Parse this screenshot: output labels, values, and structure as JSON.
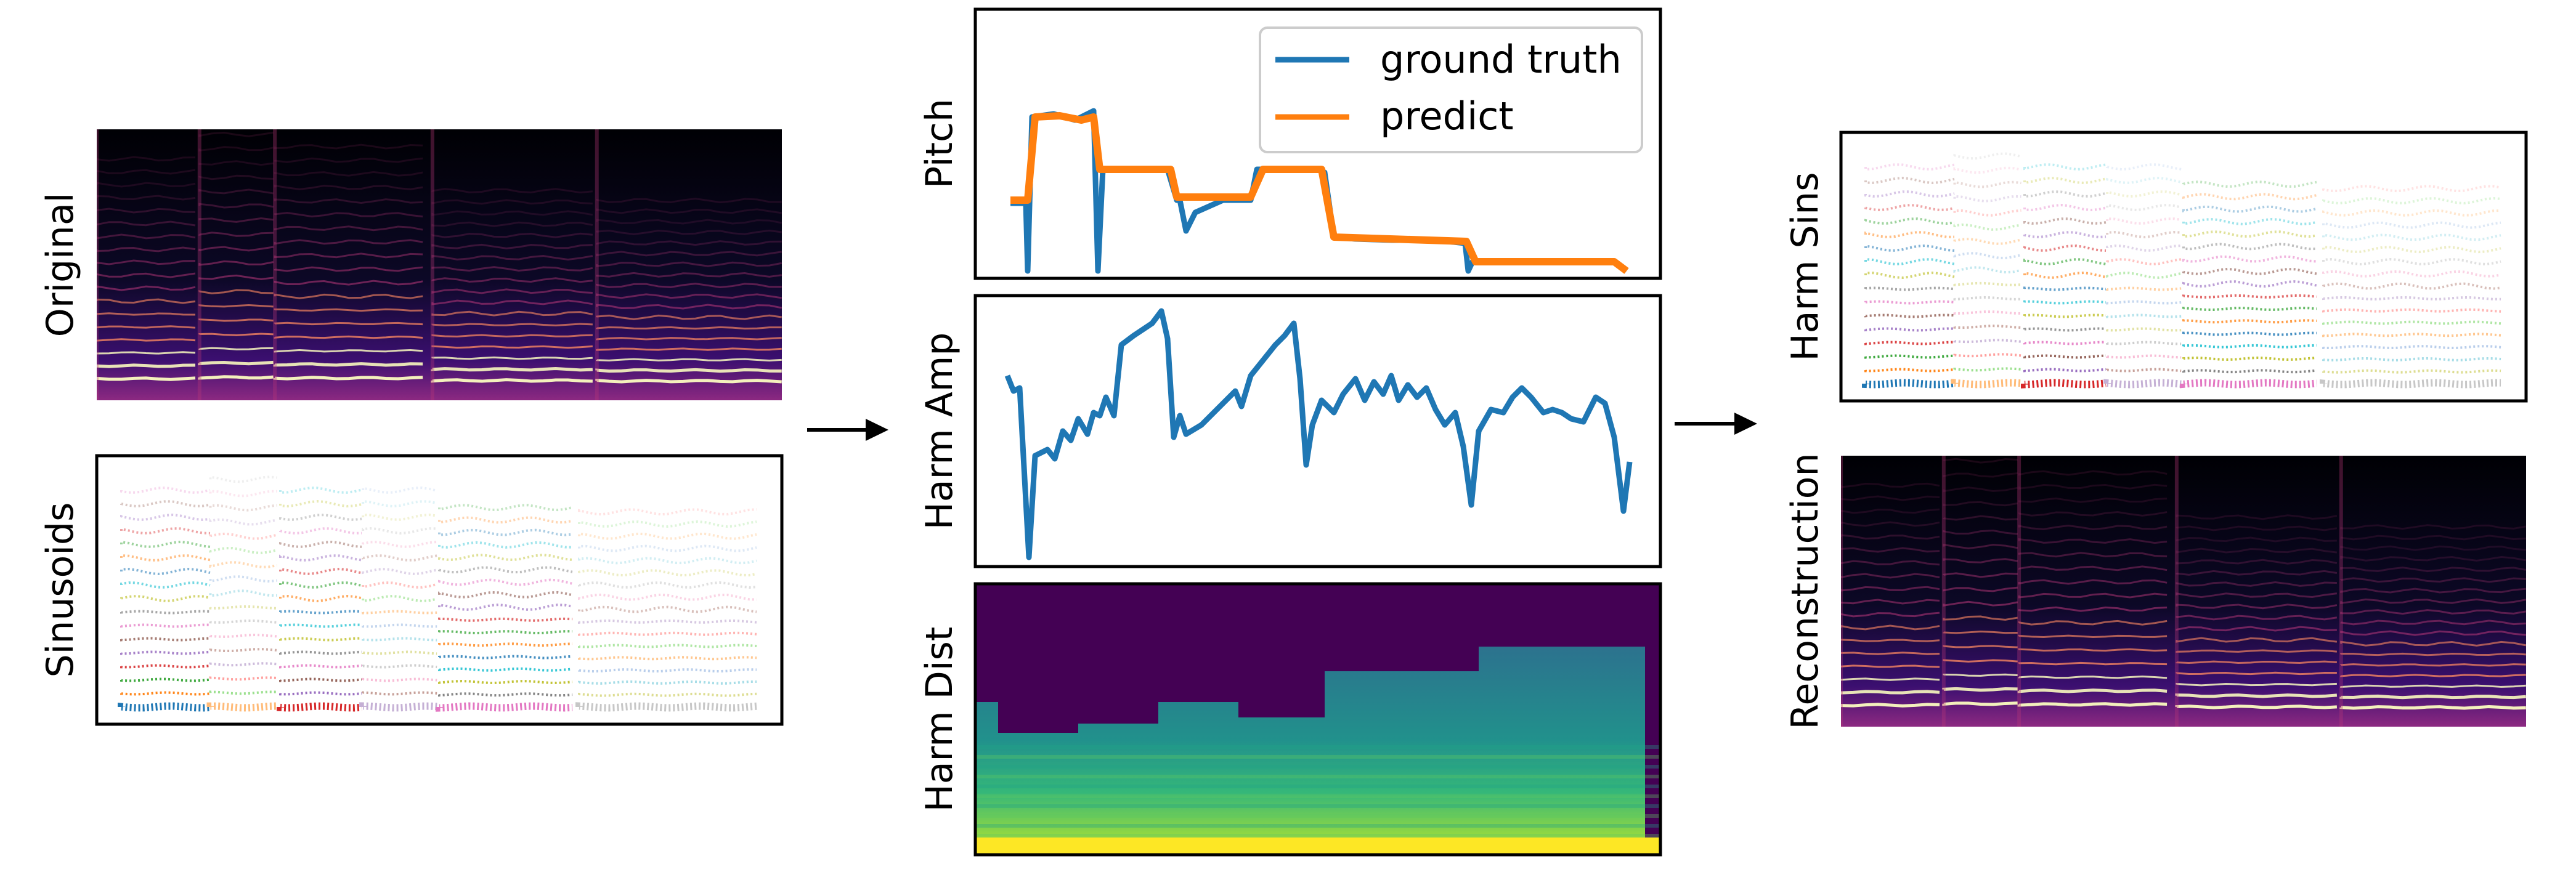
{
  "labels": {
    "original": "Original",
    "sinusoids": "Sinusoids",
    "pitch": "Pitch",
    "harm_amp": "Harm Amp",
    "harm_dist": "Harm Dist",
    "harm_sins": "Harm Sins",
    "reconstruction": "Reconstruction"
  },
  "legend": {
    "ground_truth": "ground truth",
    "predict": "predict"
  },
  "colors": {
    "ground_truth": "#1f77b4",
    "predict": "#ff7f0e",
    "spectrogram_bg": "#000004",
    "viridis_low": "#440154",
    "viridis_high": "#fde725"
  },
  "icons": {
    "arrow_left": "right-arrow-icon",
    "arrow_right": "right-arrow-icon"
  }
}
